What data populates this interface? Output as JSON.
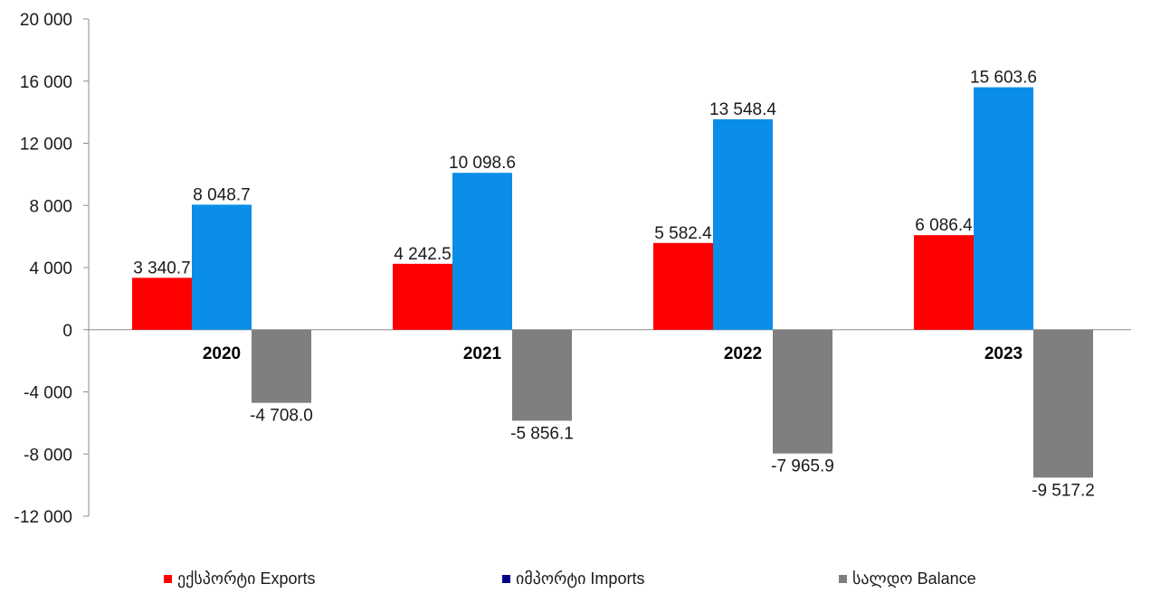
{
  "chart_data": {
    "type": "bar",
    "categories": [
      "2020",
      "2021",
      "2022",
      "2023"
    ],
    "series": [
      {
        "name": "ექსპორტი Exports",
        "color": "#ff0000",
        "values": [
          3340.7,
          4242.5,
          5582.4,
          6086.4
        ],
        "labels": [
          "3 340.7",
          "4 242.5",
          "5 582.4",
          "6 086.4"
        ]
      },
      {
        "name": "იმპორტი Imports",
        "color": "#0a8ee8",
        "legend_color": "#00008b",
        "values": [
          8048.7,
          10098.6,
          13548.4,
          15603.6
        ],
        "labels": [
          "8 048.7",
          "10 098.6",
          "13 548.4",
          "15 603.6"
        ]
      },
      {
        "name": "სალდო Balance",
        "color": "#7f7f7f",
        "values": [
          -4708.0,
          -5856.1,
          -7965.9,
          -9517.2
        ],
        "labels": [
          "-4 708.0",
          "-5 856.1",
          "-7 965.9",
          "-9 517.2"
        ]
      }
    ],
    "ylim": [
      -12000,
      20000
    ],
    "yticks": [
      20000,
      16000,
      12000,
      8000,
      4000,
      0,
      -4000,
      -8000,
      -12000
    ],
    "ytick_labels": [
      "20 000",
      "16 000",
      "12 000",
      "8 000",
      "4 000",
      "0",
      "-4 000",
      "-8 000",
      "-12 000"
    ],
    "grid": false,
    "legend_position": "bottom",
    "title": "",
    "xlabel": "",
    "ylabel": ""
  }
}
